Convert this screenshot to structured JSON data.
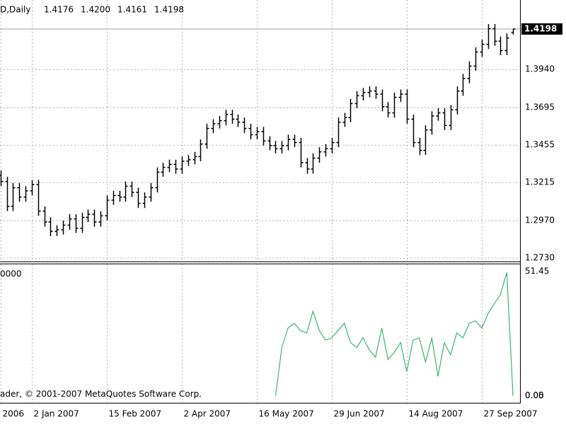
{
  "chart_data": [
    {
      "type": "ohlc",
      "title": "D,Daily",
      "quote": [
        "1.4176",
        "1.4200",
        "1.4161",
        "1.4198"
      ],
      "last_price": 1.4198,
      "categories": [
        "2006",
        null,
        null,
        null,
        null,
        "2 Jan 2007",
        null,
        null,
        null,
        null,
        null,
        null,
        null,
        null,
        null,
        null,
        null,
        "15 Feb 2007",
        null,
        null,
        null,
        null,
        null,
        null,
        null,
        null,
        null,
        null,
        null,
        "2 Apr 2007",
        null,
        null,
        null,
        null,
        null,
        null,
        null,
        null,
        null,
        null,
        null,
        "16 May 2007",
        null,
        null,
        null,
        null,
        null,
        null,
        null,
        null,
        null,
        null,
        null,
        "29 Jun 2007",
        null,
        null,
        null,
        null,
        null,
        null,
        null,
        null,
        null,
        null,
        null,
        "14 Aug 2007",
        null,
        null,
        null,
        null,
        null,
        null,
        null,
        null,
        null,
        null,
        null,
        "27 Sep 2007",
        null,
        null,
        null,
        null,
        null
      ],
      "open": [
        1.326,
        1.322,
        1.306,
        1.318,
        1.312,
        1.316,
        1.32,
        1.303,
        1.296,
        1.29,
        1.291,
        1.294,
        1.298,
        1.292,
        1.299,
        1.301,
        1.296,
        1.3,
        1.31,
        1.313,
        1.312,
        1.319,
        1.315,
        1.308,
        1.312,
        1.318,
        1.328,
        1.331,
        1.333,
        1.33,
        1.335,
        1.336,
        1.338,
        1.346,
        1.356,
        1.359,
        1.361,
        1.365,
        1.362,
        1.36,
        1.356,
        1.352,
        1.354,
        1.348,
        1.345,
        1.343,
        1.345,
        1.349,
        1.347,
        1.334,
        1.33,
        1.337,
        1.341,
        1.343,
        1.347,
        1.36,
        1.363,
        1.372,
        1.377,
        1.379,
        1.38,
        1.378,
        1.37,
        1.366,
        1.376,
        1.378,
        1.362,
        1.347,
        1.342,
        1.355,
        1.364,
        1.366,
        1.358,
        1.368,
        1.38,
        1.388,
        1.396,
        1.405,
        1.41,
        1.42,
        1.412,
        1.406,
        1.4176
      ],
      "high": [
        1.329,
        1.325,
        1.321,
        1.321,
        1.319,
        1.323,
        1.323,
        1.306,
        1.299,
        1.294,
        1.297,
        1.301,
        1.301,
        1.302,
        1.304,
        1.304,
        1.303,
        1.313,
        1.316,
        1.316,
        1.322,
        1.322,
        1.318,
        1.315,
        1.321,
        1.331,
        1.334,
        1.336,
        1.336,
        1.338,
        1.339,
        1.341,
        1.349,
        1.359,
        1.362,
        1.364,
        1.368,
        1.368,
        1.365,
        1.363,
        1.359,
        1.357,
        1.357,
        1.351,
        1.348,
        1.348,
        1.352,
        1.352,
        1.35,
        1.337,
        1.34,
        1.344,
        1.346,
        1.35,
        1.363,
        1.366,
        1.375,
        1.38,
        1.382,
        1.383,
        1.383,
        1.381,
        1.373,
        1.379,
        1.381,
        1.381,
        1.365,
        1.35,
        1.358,
        1.367,
        1.369,
        1.369,
        1.371,
        1.383,
        1.391,
        1.399,
        1.408,
        1.413,
        1.423,
        1.423,
        1.415,
        1.417,
        1.42
      ],
      "low": [
        1.319,
        1.303,
        1.303,
        1.309,
        1.309,
        1.313,
        1.3,
        1.293,
        1.287,
        1.287,
        1.288,
        1.291,
        1.289,
        1.289,
        1.296,
        1.293,
        1.293,
        1.297,
        1.307,
        1.309,
        1.309,
        1.312,
        1.305,
        1.305,
        1.309,
        1.315,
        1.325,
        1.328,
        1.327,
        1.327,
        1.332,
        1.333,
        1.335,
        1.343,
        1.353,
        1.356,
        1.358,
        1.359,
        1.357,
        1.353,
        1.349,
        1.349,
        1.345,
        1.342,
        1.34,
        1.34,
        1.342,
        1.344,
        1.331,
        1.327,
        1.327,
        1.334,
        1.338,
        1.34,
        1.344,
        1.357,
        1.36,
        1.369,
        1.374,
        1.376,
        1.375,
        1.367,
        1.363,
        1.363,
        1.373,
        1.359,
        1.344,
        1.339,
        1.339,
        1.352,
        1.361,
        1.355,
        1.355,
        1.365,
        1.377,
        1.385,
        1.393,
        1.402,
        1.407,
        1.409,
        1.403,
        1.403,
        1.4161
      ],
      "close": [
        1.322,
        1.306,
        1.318,
        1.312,
        1.316,
        1.32,
        1.303,
        1.296,
        1.29,
        1.291,
        1.294,
        1.298,
        1.292,
        1.299,
        1.301,
        1.296,
        1.3,
        1.31,
        1.313,
        1.312,
        1.319,
        1.315,
        1.308,
        1.312,
        1.318,
        1.328,
        1.331,
        1.333,
        1.33,
        1.335,
        1.336,
        1.338,
        1.346,
        1.356,
        1.359,
        1.361,
        1.365,
        1.362,
        1.36,
        1.356,
        1.352,
        1.354,
        1.348,
        1.345,
        1.343,
        1.345,
        1.349,
        1.347,
        1.334,
        1.33,
        1.337,
        1.341,
        1.343,
        1.347,
        1.36,
        1.363,
        1.372,
        1.377,
        1.379,
        1.38,
        1.378,
        1.37,
        1.366,
        1.376,
        1.378,
        1.362,
        1.347,
        1.342,
        1.355,
        1.364,
        1.366,
        1.358,
        1.368,
        1.38,
        1.388,
        1.396,
        1.405,
        1.41,
        1.42,
        1.412,
        1.406,
        1.414,
        1.4198
      ],
      "color": "#000000",
      "ylim": [
        1.2707,
        1.4384
      ],
      "yticks": [
        {
          "value": 1.273,
          "label": "1.2730"
        },
        {
          "value": 1.297,
          "label": "1.2970"
        },
        {
          "value": 1.3215,
          "label": "1.3215"
        },
        {
          "value": 1.3455,
          "label": "1.3455"
        },
        {
          "value": 1.3695,
          "label": "1.3695"
        },
        {
          "value": 1.394,
          "label": "1.3940"
        }
      ],
      "grid": true
    },
    {
      "type": "line",
      "title": "0000",
      "annotation": "ader, © 2001-2007 MetaQuotes Software Corp.",
      "values": [
        null,
        null,
        null,
        null,
        null,
        null,
        null,
        null,
        null,
        null,
        null,
        null,
        null,
        null,
        null,
        null,
        null,
        null,
        null,
        null,
        null,
        null,
        null,
        null,
        null,
        null,
        null,
        null,
        null,
        null,
        null,
        null,
        null,
        null,
        null,
        null,
        null,
        null,
        null,
        null,
        null,
        null,
        null,
        null,
        0,
        20,
        28,
        30,
        27,
        26,
        35,
        27,
        23,
        24,
        27,
        30,
        22,
        20,
        24,
        19,
        16,
        28,
        15,
        18,
        22,
        10,
        23,
        24,
        14,
        24,
        8,
        22,
        17,
        26,
        24,
        30,
        31,
        28,
        34,
        38,
        42,
        51,
        0
      ],
      "color": "#3cb371",
      "ylim": [
        -2.9,
        54.4
      ],
      "yticks": [
        {
          "value": 0,
          "label": "0.00"
        },
        0.05,
        51.45
      ],
      "grid": true
    }
  ]
}
